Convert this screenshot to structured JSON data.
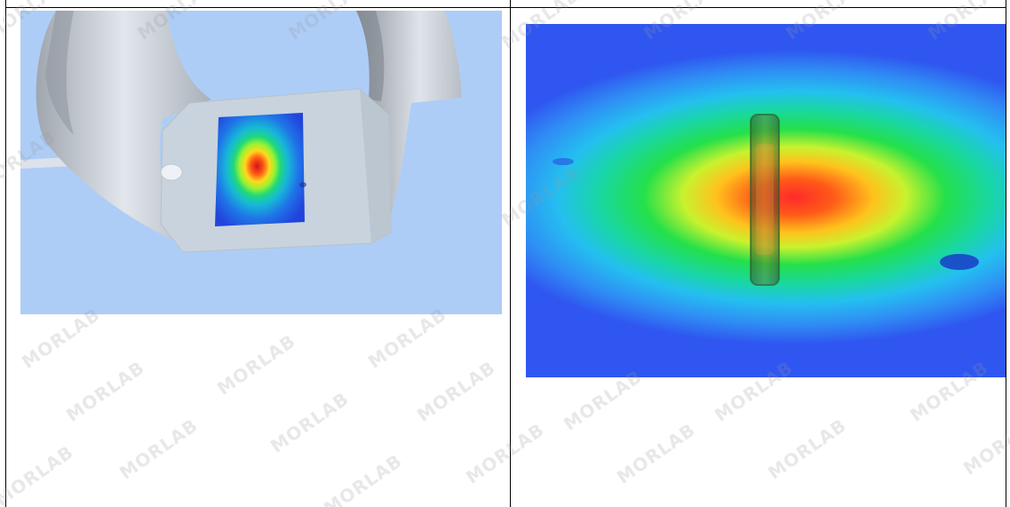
{
  "watermark": {
    "text": "MORLAB"
  },
  "left_figure": {
    "description_icon": "sar-3d-model-icon",
    "bg_color": "#aecdf6"
  },
  "right_figure": {
    "description_icon": "sar-heatmap-icon",
    "bg_color": "#2f56f0"
  }
}
